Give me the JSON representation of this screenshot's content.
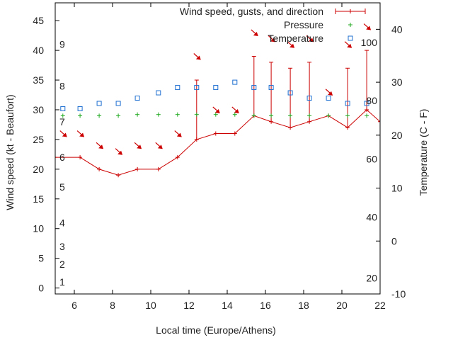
{
  "chart_data": {
    "type": "line",
    "x_range": [
      5,
      22
    ],
    "y_range": [
      -1,
      48
    ],
    "y2_range": [
      -10,
      45
    ],
    "xlabel": "Local time (Europe/Athens)",
    "ylabel": "Wind speed (kt - Beaufort)",
    "y2label": "Temperature (C - F)",
    "x_ticks": [
      6,
      8,
      10,
      12,
      14,
      16,
      18,
      20,
      22
    ],
    "y_ticks": [
      0,
      5,
      10,
      15,
      20,
      25,
      30,
      35,
      40,
      45
    ],
    "y2_ticks": [
      -10,
      0,
      10,
      20,
      30,
      40
    ],
    "beaufort_labels": [
      {
        "label": "1",
        "kt": 1
      },
      {
        "label": "2",
        "kt": 4
      },
      {
        "label": "3",
        "kt": 7
      },
      {
        "label": "4",
        "kt": 11
      },
      {
        "label": "5",
        "kt": 17
      },
      {
        "label": "6",
        "kt": 22
      },
      {
        "label": "7",
        "kt": 28
      },
      {
        "label": "8",
        "kt": 34
      },
      {
        "label": "9",
        "kt": 41
      }
    ],
    "fahrenheit_labels": [
      {
        "label": "20",
        "celsius": -7
      },
      {
        "label": "40",
        "celsius": 4.5
      },
      {
        "label": "60",
        "celsius": 15.5
      },
      {
        "label": "80",
        "celsius": 26.5
      },
      {
        "label": "100",
        "celsius": 37.5
      }
    ],
    "legend": [
      {
        "label": "Wind speed, gusts, and direction",
        "symbol": "errorbar",
        "color": "#cc0000"
      },
      {
        "label": "Pressure",
        "symbol": "plus",
        "color": "#22aa22"
      },
      {
        "label": "Temperature",
        "symbol": "square",
        "color": "#1f6fd1"
      }
    ],
    "series": [
      {
        "name": "Wind speed, gusts, and direction",
        "color": "#cc0000",
        "x": [
          5,
          6.3,
          7.3,
          8.3,
          9.3,
          10.4,
          11.4,
          12.4,
          13.4,
          14.4,
          15.4,
          16.3,
          17.3,
          18.3,
          19.3,
          20.3,
          21.3,
          22
        ],
        "y": [
          22,
          22,
          20,
          19,
          20,
          20,
          22,
          25,
          26,
          26,
          29,
          28,
          27,
          28,
          29,
          27,
          30,
          28
        ],
        "gusts": [
          null,
          null,
          null,
          null,
          null,
          null,
          null,
          35,
          null,
          null,
          39,
          38,
          37,
          38,
          null,
          37,
          40,
          null
        ]
      },
      {
        "name": "Pressure",
        "color": "#22aa22",
        "x": [
          5.4,
          6.3,
          7.3,
          8.3,
          9.3,
          10.4,
          11.4,
          12.4,
          13.4,
          14.4,
          15.4,
          16.3,
          17.3,
          18.3,
          19.3,
          20.3,
          21.3
        ],
        "y": [
          29,
          29,
          29,
          29,
          29.2,
          29.2,
          29.2,
          29.2,
          29.2,
          29.2,
          29,
          29,
          29,
          29,
          29,
          29,
          29
        ]
      },
      {
        "name": "Temperature",
        "color": "#1f6fd1",
        "x": [
          5.4,
          6.3,
          7.3,
          8.3,
          9.3,
          10.4,
          11.4,
          12.4,
          13.4,
          14.4,
          15.4,
          16.3,
          17.3,
          18.3,
          19.3,
          20.3,
          21.3
        ],
        "y2": [
          25,
          25,
          26,
          26,
          27,
          28,
          29,
          29,
          29,
          30,
          29,
          29,
          28,
          27,
          27,
          26,
          26
        ]
      }
    ],
    "wind_direction_arrows": {
      "color": "#cc0000",
      "points": [
        {
          "x": 5.4,
          "y": 26,
          "dir": "down-right"
        },
        {
          "x": 6.3,
          "y": 26,
          "dir": "down-right"
        },
        {
          "x": 7.3,
          "y": 24,
          "dir": "down-right"
        },
        {
          "x": 8.3,
          "y": 23,
          "dir": "down-right"
        },
        {
          "x": 9.3,
          "y": 24,
          "dir": "down-right"
        },
        {
          "x": 10.4,
          "y": 24,
          "dir": "down-right"
        },
        {
          "x": 11.4,
          "y": 26,
          "dir": "down-right"
        },
        {
          "x": 12.4,
          "y": 39,
          "dir": "down-right"
        },
        {
          "x": 13.4,
          "y": 30,
          "dir": "down-right"
        },
        {
          "x": 14.4,
          "y": 30,
          "dir": "down-right"
        },
        {
          "x": 15.4,
          "y": 43,
          "dir": "down-right"
        },
        {
          "x": 16.3,
          "y": 42,
          "dir": "down-right"
        },
        {
          "x": 17.3,
          "y": 41,
          "dir": "down-right"
        },
        {
          "x": 18.3,
          "y": 42,
          "dir": "down-right"
        },
        {
          "x": 19.3,
          "y": 33,
          "dir": "down-right"
        },
        {
          "x": 20.3,
          "y": 41,
          "dir": "down-right"
        },
        {
          "x": 21.3,
          "y": 44,
          "dir": "down-right"
        }
      ]
    },
    "grid": false,
    "legend_position": "top-right"
  }
}
